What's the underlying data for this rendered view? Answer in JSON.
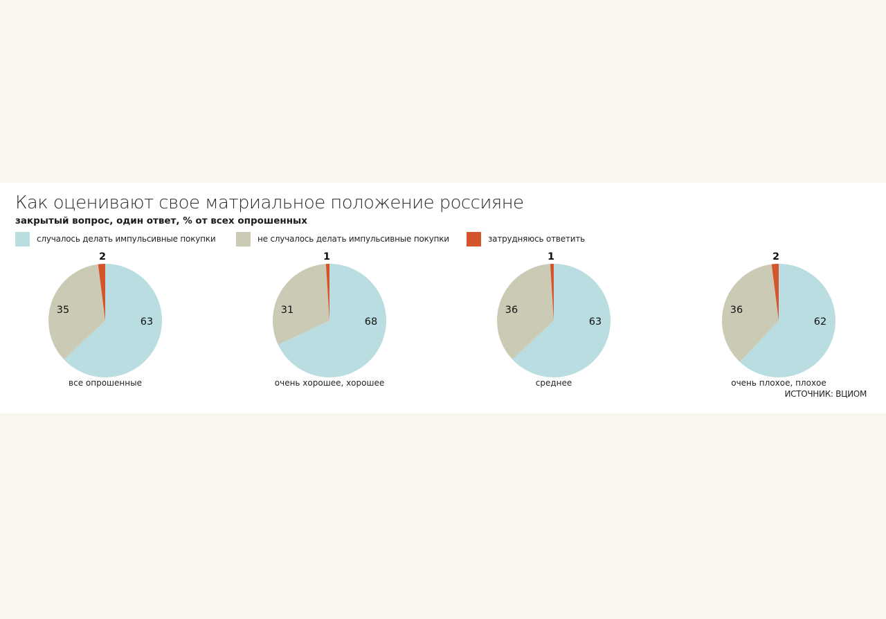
{
  "title": "Как оценивают свое матриальное положение россияне",
  "subtitle": "закрытый вопрос, один ответ, % от всех опрошенных",
  "legend": [
    {
      "label": "случалось делать импульсивные покупки",
      "color": "#b9dde0"
    },
    {
      "label": "не случалось делать импульсивные покупки",
      "color": "#cbcab5"
    },
    {
      "label": "затрудняюсь ответить",
      "color": "#d4542b"
    }
  ],
  "source": "ИСТОЧНИК: ВЦИОМ",
  "chart_data": [
    {
      "type": "pie",
      "title": "все опрошенные",
      "labels": [
        "случалось делать импульсивные покупки",
        "не случалось делать импульсивные покупки",
        "затрудняюсь ответить"
      ],
      "values": [
        63,
        35,
        2
      ],
      "colors": [
        "#b9dde0",
        "#cbcab5",
        "#d4542b"
      ]
    },
    {
      "type": "pie",
      "title": "очень хорошее, хорошее",
      "labels": [
        "случалось делать импульсивные покупки",
        "не случалось делать импульсивные покупки",
        "затрудняюсь ответить"
      ],
      "values": [
        68,
        31,
        1
      ],
      "colors": [
        "#b9dde0",
        "#cbcab5",
        "#d4542b"
      ]
    },
    {
      "type": "pie",
      "title": "среднее",
      "labels": [
        "случалось делать импульсивные покупки",
        "не случалось делать импульсивные покупки",
        "затрудняюсь ответить"
      ],
      "values": [
        63,
        36,
        1
      ],
      "colors": [
        "#b9dde0",
        "#cbcab5",
        "#d4542b"
      ]
    },
    {
      "type": "pie",
      "title": "очень плохое, плохое",
      "labels": [
        "случалось делать импульсивные покупки",
        "не случалось делать импульсивные покупки",
        "затрудняюсь ответить"
      ],
      "values": [
        62,
        36,
        2
      ],
      "colors": [
        "#b9dde0",
        "#cbcab5",
        "#d4542b"
      ]
    }
  ]
}
